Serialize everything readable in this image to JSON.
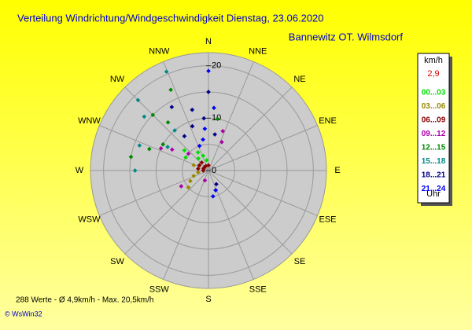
{
  "chart_data": {
    "type": "polar-scatter",
    "title": "Verteilung Windrichtung/Windgeschwindigkeit  Dienstag, 23.06.2020",
    "subtitle": "Bannewitz OT. Wilmsdorf",
    "directions": [
      "N",
      "NNE",
      "NE",
      "ENE",
      "E",
      "ESE",
      "SE",
      "SSE",
      "S",
      "SSW",
      "SW",
      "WSW",
      "W",
      "WNW",
      "NW",
      "NNW"
    ],
    "rlim": [
      0,
      22.5
    ],
    "rticks": [
      0,
      10,
      20
    ],
    "rgrid": [
      5,
      10,
      15,
      20
    ],
    "legend_unit": "km/h",
    "legend_current": "2,9",
    "legend_footer": "Uhr",
    "series": [
      {
        "name": "00...03",
        "color": "#00dd00",
        "x": [
          350,
          340,
          330,
          320,
          300,
          310
        ],
        "values": [
          2,
          3,
          4,
          3,
          5,
          6
        ]
      },
      {
        "name": "03...06",
        "color": "#998800",
        "x": [
          230,
          240,
          250,
          260,
          300,
          290
        ],
        "values": [
          5,
          4,
          3,
          2,
          2,
          3
        ]
      },
      {
        "name": "06...09",
        "color": "#880000",
        "x": [
          270,
          280,
          290,
          300,
          310,
          320,
          330,
          0
        ],
        "values": [
          1,
          2,
          1,
          2,
          1,
          2,
          1,
          1
        ]
      },
      {
        "name": "09...12",
        "color": "#aa00aa",
        "x": [
          20,
          25,
          300,
          295,
          310,
          240,
          200
        ],
        "values": [
          8,
          6,
          8,
          10,
          5,
          6,
          2
        ]
      },
      {
        "name": "12...15",
        "color": "#008800",
        "x": [
          290,
          300,
          315,
          320,
          10,
          280,
          335
        ],
        "values": [
          12,
          10,
          15,
          12,
          10,
          15,
          17
        ]
      },
      {
        "name": "15...18",
        "color": "#008888",
        "x": [
          315,
          310,
          300,
          270,
          290,
          337,
          320
        ],
        "values": [
          19,
          16,
          9,
          14,
          14,
          20.5,
          10
        ]
      },
      {
        "name": "18...21",
        "color": "#000088",
        "x": [
          330,
          345,
          340,
          355,
          10,
          0,
          325,
          150,
          160
        ],
        "values": [
          14,
          12,
          9,
          10,
          7,
          15,
          8,
          3,
          4
        ]
      },
      {
        "name": "21...24",
        "color": "#0000ff",
        "x": [
          0,
          5,
          355,
          160,
          170,
          350,
          340
        ],
        "values": [
          19,
          12,
          8,
          4,
          5,
          6,
          5
        ]
      }
    ],
    "footer": "288 Werte   -   Ø 4,9km/h   -   Max. 20,5km/h",
    "credit": "© WsWin32"
  }
}
